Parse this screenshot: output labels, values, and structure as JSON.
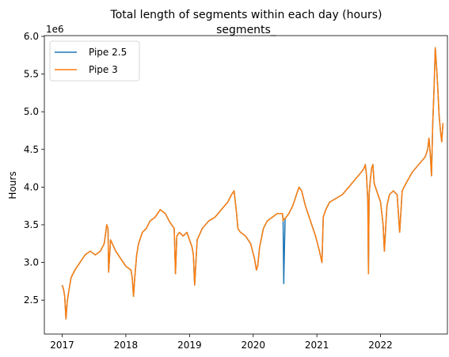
{
  "chart_data": {
    "type": "line",
    "title": "Total length of segments within each day (hours)",
    "subtitle": "segments_",
    "ylabel": "Hours",
    "xlabel": "",
    "y_offset_label": "1e6",
    "xlim": [
      2016.72,
      2023.05
    ],
    "ylim": [
      2050000,
      6010000
    ],
    "x_ticks": [
      2017,
      2018,
      2019,
      2020,
      2021,
      2022
    ],
    "x_tick_labels": [
      "2017",
      "2018",
      "2019",
      "2020",
      "2021",
      "2022"
    ],
    "y_ticks": [
      2500000,
      3000000,
      3500000,
      4000000,
      4500000,
      5000000,
      5500000,
      6000000
    ],
    "y_tick_labels": [
      "2.5",
      "3.0",
      "3.5",
      "4.0",
      "4.5",
      "5.0",
      "5.5",
      "6.0"
    ],
    "grid": false,
    "legend_position": "top-left",
    "series": [
      {
        "name": "Pipe 2.5",
        "color": "#1f77b4",
        "x": [
          2017.0,
          2017.02,
          2017.04,
          2017.06,
          2017.08,
          2017.1,
          2017.14,
          2017.2,
          2017.28,
          2017.36,
          2017.44,
          2017.52,
          2017.6,
          2017.66,
          2017.7,
          2017.72,
          2017.73,
          2017.76,
          2017.84,
          2017.92,
          2018.0,
          2018.08,
          2018.1,
          2018.12,
          2018.14,
          2018.17,
          2018.2,
          2018.26,
          2018.32,
          2018.38,
          2018.46,
          2018.54,
          2018.62,
          2018.68,
          2018.72,
          2018.76,
          2018.78,
          2018.8,
          2018.84,
          2018.9,
          2018.96,
          2019.0,
          2019.04,
          2019.06,
          2019.08,
          2019.12,
          2019.2,
          2019.3,
          2019.4,
          2019.5,
          2019.6,
          2019.66,
          2019.7,
          2019.74,
          2019.76,
          2019.8,
          2019.88,
          2019.96,
          2020.02,
          2020.05,
          2020.07,
          2020.1,
          2020.16,
          2020.22,
          2020.3,
          2020.38,
          2020.46,
          2020.47,
          2020.48,
          2020.5,
          2020.56,
          2020.62,
          2020.66,
          2020.7,
          2020.72,
          2020.76,
          2020.82,
          2020.9,
          2020.98,
          2021.04,
          2021.08,
          2021.1,
          2021.14,
          2021.2,
          2021.3,
          2021.4,
          2021.5,
          2021.6,
          2021.7,
          2021.74,
          2021.76,
          2021.78,
          2021.8,
          2021.81,
          2021.82,
          2021.84,
          2021.86,
          2021.88,
          2021.9,
          2021.94,
          2022.0,
          2022.04,
          2022.06,
          2022.1,
          2022.14,
          2022.2,
          2022.26,
          2022.3,
          2022.34,
          2022.4,
          2022.5,
          2022.6,
          2022.7,
          2022.74,
          2022.76,
          2022.78,
          2022.8,
          2022.82,
          2022.84,
          2022.86,
          2022.88,
          2022.9,
          2022.92,
          2022.94,
          2022.96,
          2022.98
        ],
        "y": [
          2700000,
          2650000,
          2550000,
          2250000,
          2480000,
          2600000,
          2800000,
          2900000,
          3000000,
          3100000,
          3150000,
          3100000,
          3150000,
          3250000,
          3500000,
          3450000,
          2870000,
          3300000,
          3150000,
          3050000,
          2950000,
          2900000,
          2800000,
          2550000,
          2800000,
          3100000,
          3250000,
          3400000,
          3450000,
          3550000,
          3600000,
          3700000,
          3650000,
          3550000,
          3500000,
          3450000,
          2850000,
          3350000,
          3400000,
          3350000,
          3400000,
          3300000,
          3200000,
          3100000,
          2700000,
          3300000,
          3450000,
          3550000,
          3600000,
          3700000,
          3800000,
          3900000,
          3950000,
          3650000,
          3450000,
          3400000,
          3350000,
          3250000,
          3050000,
          2900000,
          2950000,
          3200000,
          3450000,
          3550000,
          3600000,
          3650000,
          3650000,
          3550000,
          2720000,
          3580000,
          3650000,
          3750000,
          3850000,
          3950000,
          4000000,
          3950000,
          3750000,
          3550000,
          3350000,
          3150000,
          3000000,
          3600000,
          3700000,
          3800000,
          3850000,
          3900000,
          4000000,
          4100000,
          4200000,
          4250000,
          4300000,
          4150000,
          3800000,
          2850000,
          3900000,
          4100000,
          4250000,
          4300000,
          4050000,
          3950000,
          3800000,
          3500000,
          3150000,
          3750000,
          3900000,
          3950000,
          3900000,
          3400000,
          3950000,
          4050000,
          4200000,
          4300000,
          4400000,
          4500000,
          4650000,
          4450000,
          4150000,
          4850000,
          5300000,
          5850000,
          5600000,
          5300000,
          4950000,
          4750000,
          4600000,
          4850000
        ]
      },
      {
        "name": "Pipe 3",
        "color": "#ff7f0e",
        "x": [
          2017.0,
          2017.02,
          2017.04,
          2017.06,
          2017.08,
          2017.1,
          2017.14,
          2017.2,
          2017.28,
          2017.36,
          2017.44,
          2017.52,
          2017.6,
          2017.66,
          2017.7,
          2017.72,
          2017.73,
          2017.76,
          2017.84,
          2017.92,
          2018.0,
          2018.08,
          2018.1,
          2018.12,
          2018.14,
          2018.17,
          2018.2,
          2018.26,
          2018.32,
          2018.38,
          2018.46,
          2018.54,
          2018.62,
          2018.68,
          2018.72,
          2018.76,
          2018.78,
          2018.8,
          2018.84,
          2018.9,
          2018.96,
          2019.0,
          2019.04,
          2019.06,
          2019.08,
          2019.12,
          2019.2,
          2019.3,
          2019.4,
          2019.5,
          2019.6,
          2019.66,
          2019.7,
          2019.74,
          2019.76,
          2019.8,
          2019.88,
          2019.96,
          2020.02,
          2020.05,
          2020.07,
          2020.1,
          2020.16,
          2020.22,
          2020.3,
          2020.38,
          2020.46,
          2020.47,
          2020.48,
          2020.5,
          2020.56,
          2020.62,
          2020.66,
          2020.7,
          2020.72,
          2020.76,
          2020.82,
          2020.9,
          2020.98,
          2021.04,
          2021.08,
          2021.1,
          2021.14,
          2021.2,
          2021.3,
          2021.4,
          2021.5,
          2021.6,
          2021.7,
          2021.74,
          2021.76,
          2021.78,
          2021.8,
          2021.81,
          2021.82,
          2021.84,
          2021.86,
          2021.88,
          2021.9,
          2021.94,
          2022.0,
          2022.04,
          2022.06,
          2022.1,
          2022.14,
          2022.2,
          2022.26,
          2022.3,
          2022.34,
          2022.4,
          2022.5,
          2022.6,
          2022.7,
          2022.74,
          2022.76,
          2022.78,
          2022.8,
          2022.82,
          2022.84,
          2022.86,
          2022.88,
          2022.9,
          2022.92,
          2022.94,
          2022.96,
          2022.98
        ],
        "y": [
          2700000,
          2650000,
          2550000,
          2250000,
          2480000,
          2600000,
          2800000,
          2900000,
          3000000,
          3100000,
          3150000,
          3100000,
          3150000,
          3250000,
          3500000,
          3450000,
          2870000,
          3300000,
          3150000,
          3050000,
          2950000,
          2900000,
          2800000,
          2550000,
          2800000,
          3100000,
          3250000,
          3400000,
          3450000,
          3550000,
          3600000,
          3700000,
          3650000,
          3550000,
          3500000,
          3450000,
          2850000,
          3350000,
          3400000,
          3350000,
          3400000,
          3300000,
          3200000,
          3100000,
          2700000,
          3300000,
          3450000,
          3550000,
          3600000,
          3700000,
          3800000,
          3900000,
          3950000,
          3650000,
          3450000,
          3400000,
          3350000,
          3250000,
          3050000,
          2900000,
          2950000,
          3200000,
          3450000,
          3550000,
          3600000,
          3650000,
          3650000,
          3550000,
          3580000,
          3580000,
          3650000,
          3750000,
          3850000,
          3950000,
          4000000,
          3950000,
          3750000,
          3550000,
          3350000,
          3150000,
          3000000,
          3600000,
          3700000,
          3800000,
          3850000,
          3900000,
          4000000,
          4100000,
          4200000,
          4250000,
          4300000,
          4150000,
          3800000,
          2850000,
          3900000,
          4100000,
          4250000,
          4300000,
          4050000,
          3950000,
          3800000,
          3500000,
          3150000,
          3750000,
          3900000,
          3950000,
          3900000,
          3400000,
          3950000,
          4050000,
          4200000,
          4300000,
          4400000,
          4500000,
          4650000,
          4450000,
          4150000,
          4850000,
          5300000,
          5850000,
          5600000,
          5300000,
          4950000,
          4750000,
          4600000,
          4850000
        ]
      }
    ]
  }
}
